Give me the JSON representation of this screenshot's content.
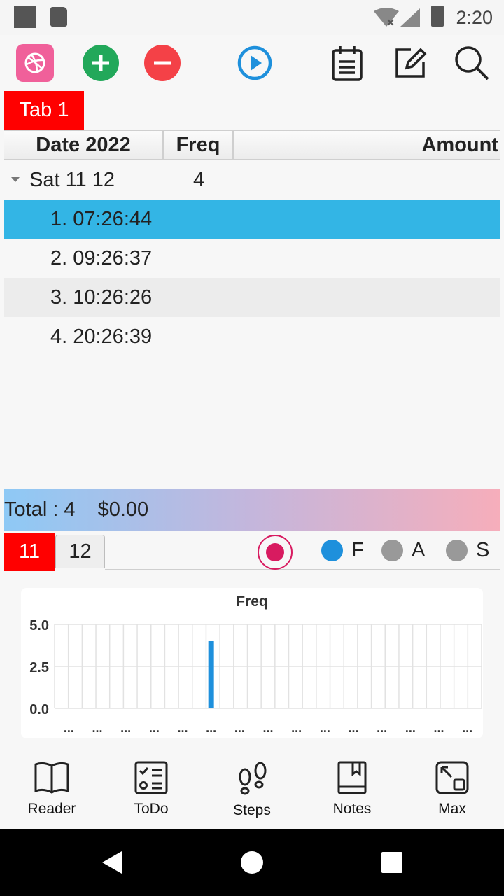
{
  "status_bar": {
    "time": "2:20"
  },
  "toolbar": {
    "buttons": [
      "dribbble-icon",
      "add-icon",
      "remove-icon",
      "play-icon",
      "list-icon",
      "edit-icon",
      "search-icon"
    ]
  },
  "tab": {
    "label": "Tab 1"
  },
  "table": {
    "headers": {
      "date": "Date  2022",
      "freq": "Freq",
      "amount": "Amount"
    },
    "group": {
      "date": "Sat 11 12",
      "freq": "4"
    },
    "rows": [
      "1. 07:26:44",
      "2. 09:26:37",
      "3. 10:26:26",
      "4. 20:26:39"
    ]
  },
  "total": {
    "count": "Total : 4",
    "amount": "$0.00"
  },
  "month_tabs": {
    "active": "11",
    "inactive": "12"
  },
  "legend": [
    {
      "label": "F",
      "color": "#1e90dc"
    },
    {
      "label": "A",
      "color": "#999999"
    },
    {
      "label": "S",
      "color": "#999999"
    }
  ],
  "chart_data": {
    "type": "bar",
    "title": "Freq",
    "yticks": [
      "5.0",
      "2.5",
      "0.0"
    ],
    "ylim": [
      0,
      5
    ],
    "categories": [
      "...",
      "...",
      "...",
      "...",
      "...",
      "...",
      "...",
      "...",
      "...",
      "...",
      "...",
      "...",
      "...",
      "...",
      "..."
    ],
    "values": [
      0,
      0,
      0,
      0,
      0,
      4,
      0,
      0,
      0,
      0,
      0,
      0,
      0,
      0,
      0
    ],
    "bar_color": "#1e90dc"
  },
  "bottom_nav": [
    {
      "label": "Reader",
      "icon": "book-icon"
    },
    {
      "label": "ToDo",
      "icon": "checklist-icon"
    },
    {
      "label": "Steps",
      "icon": "footsteps-icon"
    },
    {
      "label": "Notes",
      "icon": "bookmark-book-icon"
    },
    {
      "label": "Max",
      "icon": "maximize-icon"
    }
  ]
}
